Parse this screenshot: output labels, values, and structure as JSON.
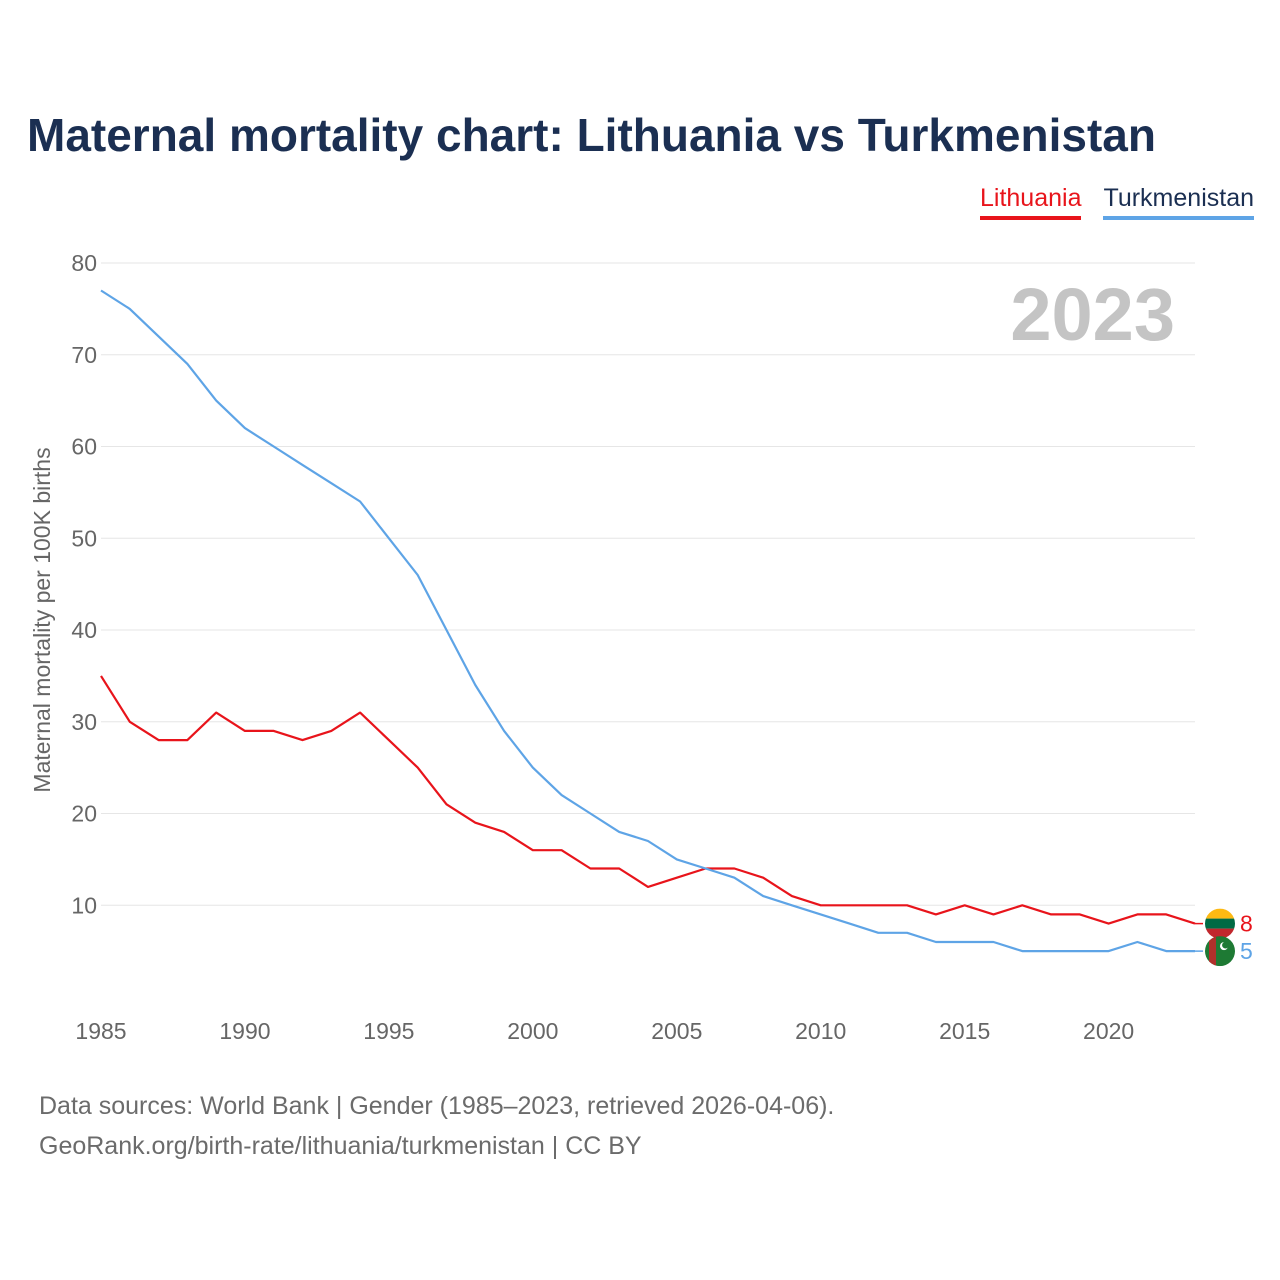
{
  "title": "Maternal mortality chart: Lithuania vs Turkmenistan",
  "legend": [
    {
      "name": "Lithuania",
      "color": "#e8141b"
    },
    {
      "name": "Turkmenistan",
      "color": "#5ea4e6"
    }
  ],
  "year_label": "2023",
  "footer": {
    "line1": "Data sources: World Bank | Gender (1985–2023, retrieved 2026-04-06).",
    "line2": "GeoRank.org/birth-rate/lithuania/turkmenistan | CC BY"
  },
  "chart_data": {
    "type": "line",
    "title": "Maternal mortality chart: Lithuania vs Turkmenistan",
    "xlabel": "",
    "ylabel": "Maternal mortality per 100K births",
    "xlim": [
      1985,
      2023
    ],
    "ylim": [
      0,
      80
    ],
    "yticks": [
      10,
      20,
      30,
      40,
      50,
      60,
      70,
      80
    ],
    "xticks": [
      1985,
      1990,
      1995,
      2000,
      2005,
      2010,
      2015,
      2020
    ],
    "grid": true,
    "legend_position": "top-right",
    "x": [
      1985,
      1986,
      1987,
      1988,
      1989,
      1990,
      1991,
      1992,
      1993,
      1994,
      1995,
      1996,
      1997,
      1998,
      1999,
      2000,
      2001,
      2002,
      2003,
      2004,
      2005,
      2006,
      2007,
      2008,
      2009,
      2010,
      2011,
      2012,
      2013,
      2014,
      2015,
      2016,
      2017,
      2018,
      2019,
      2020,
      2021,
      2022,
      2023
    ],
    "series": [
      {
        "name": "Lithuania",
        "color": "#e8141b",
        "end_label": "8",
        "flag": "lithuania-flag",
        "values": [
          35,
          30,
          28,
          28,
          31,
          29,
          29,
          28,
          29,
          31,
          28,
          25,
          21,
          19,
          18,
          16,
          16,
          14,
          14,
          12,
          13,
          14,
          14,
          13,
          11,
          10,
          10,
          10,
          10,
          9,
          10,
          9,
          10,
          9,
          9,
          8,
          9,
          9,
          8
        ]
      },
      {
        "name": "Turkmenistan",
        "color": "#5ea4e6",
        "end_label": "5",
        "flag": "turkmenistan-flag",
        "values": [
          77,
          75,
          72,
          69,
          65,
          62,
          60,
          58,
          56,
          54,
          50,
          46,
          40,
          34,
          29,
          25,
          22,
          20,
          18,
          17,
          15,
          14,
          13,
          11,
          10,
          9,
          8,
          7,
          7,
          6,
          6,
          6,
          5,
          5,
          5,
          5,
          6,
          5,
          5
        ]
      }
    ]
  }
}
